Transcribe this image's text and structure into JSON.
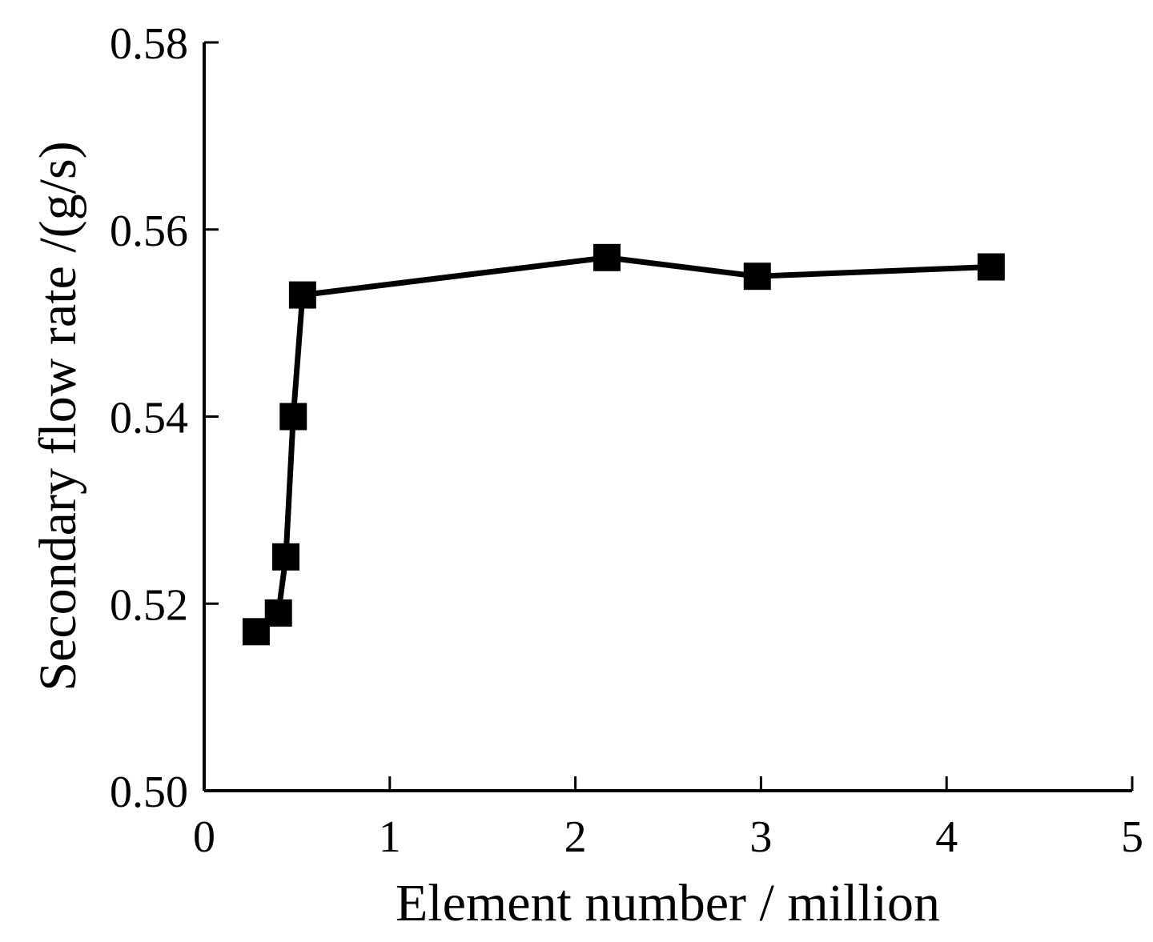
{
  "chart_data": {
    "type": "line",
    "xlabel": "Element number / million",
    "ylabel": "Secondary flow rate /(g/s)",
    "xlim": [
      0,
      5
    ],
    "ylim": [
      0.5,
      0.58
    ],
    "x_ticks": [
      "0",
      "1",
      "2",
      "3",
      "4",
      "5"
    ],
    "y_ticks": [
      "0.50",
      "0.52",
      "0.54",
      "0.56",
      "0.58"
    ],
    "grid": false,
    "marker": "square",
    "color": "#000000",
    "series": [
      {
        "x": [
          0.28,
          0.4,
          0.44,
          0.48,
          0.53,
          2.17,
          2.98,
          4.24
        ],
        "y": [
          0.517,
          0.519,
          0.525,
          0.54,
          0.553,
          0.557,
          0.555,
          0.556
        ]
      }
    ]
  }
}
